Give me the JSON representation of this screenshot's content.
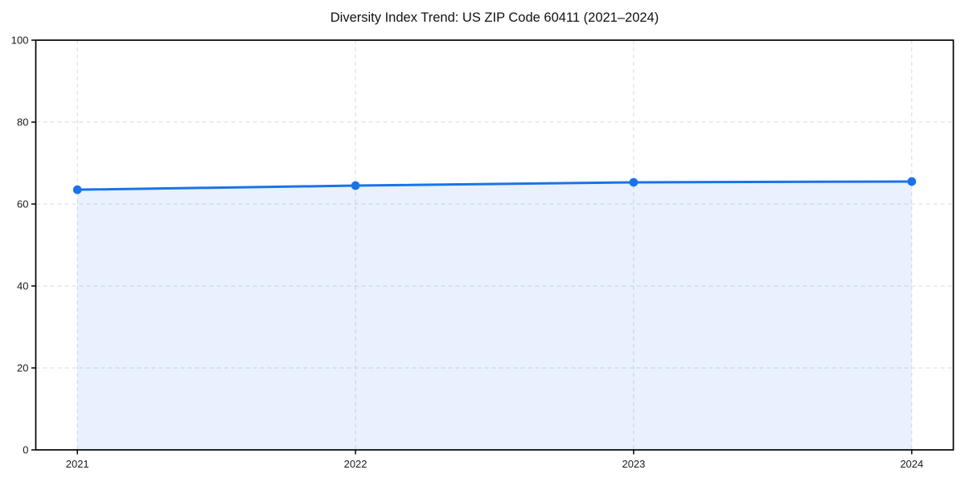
{
  "figure": {
    "background_color": "#ffffff"
  },
  "chart_data": {
    "type": "line",
    "title": "Diversity Index Trend: US ZIP Code 60411 (2021–2024)",
    "categories": [
      "2021",
      "2022",
      "2023",
      "2024"
    ],
    "values": [
      63.5,
      64.5,
      65.3,
      65.5
    ],
    "xlabel": "",
    "ylabel": "",
    "ylim": [
      0,
      100
    ],
    "y_ticks": [
      0,
      20,
      40,
      60,
      80,
      100
    ],
    "grid": true,
    "grid_style": "dashed",
    "legend_position": "none",
    "area_fill": true,
    "line_color": "#1a73e8",
    "marker_color": "#1a73e8",
    "fill_color": "rgba(26,115,232,0.10)",
    "grid_color": "#d9d9d9",
    "axis_color": "#000000",
    "tick_label_color": "#1a1a1a"
  }
}
